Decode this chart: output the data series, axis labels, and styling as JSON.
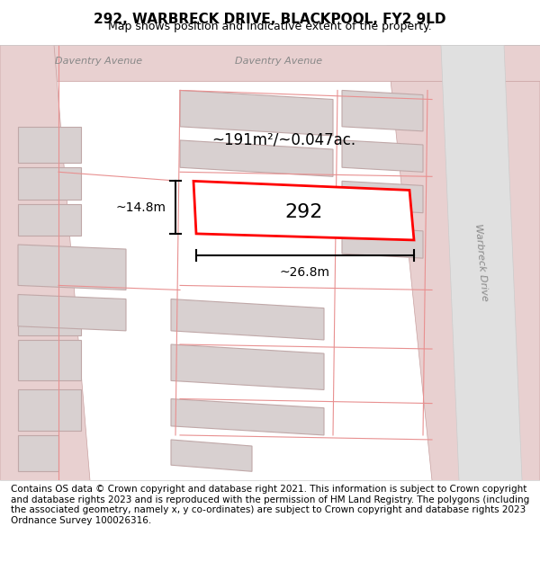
{
  "title": "292, WARBRECK DRIVE, BLACKPOOL, FY2 9LD",
  "subtitle": "Map shows position and indicative extent of the property.",
  "footer": "Contains OS data © Crown copyright and database right 2021. This information is subject to Crown copyright and database rights 2023 and is reproduced with the permission of HM Land Registry. The polygons (including the associated geometry, namely x, y co-ordinates) are subject to Crown copyright and database rights 2023 Ordnance Survey 100026316.",
  "area_label": "~191m²/~0.047ac.",
  "width_label": "~26.8m",
  "height_label": "~14.8m",
  "property_number": "292",
  "bg_color": "#f5f0f0",
  "map_bg": "#ffffff",
  "road_color": "#e8c8c8",
  "building_fill": "#d8d0d0",
  "building_outline": "#c0a8a8",
  "highlight_color": "#ff0000",
  "text_color": "#333333",
  "road_text_color": "#888888",
  "title_fontsize": 11,
  "subtitle_fontsize": 9,
  "footer_fontsize": 7.5
}
